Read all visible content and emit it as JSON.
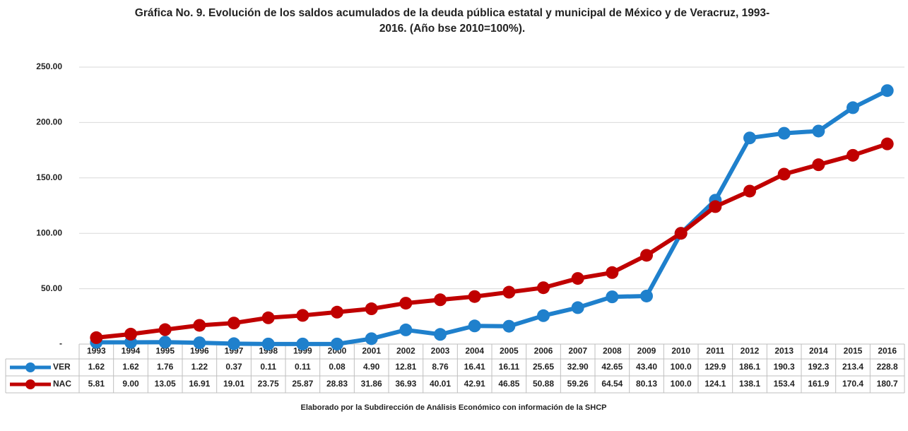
{
  "chart_data": {
    "type": "line",
    "title": "Gráfica No. 9. Evolución de los saldos acumulados de la deuda pública estatal y municipal de México y de Veracruz,  1993-2016. (Año bse 2010=100%).",
    "categories": [
      "1993",
      "1994",
      "1995",
      "1996",
      "1997",
      "1998",
      "1999",
      "2000",
      "2001",
      "2002",
      "2003",
      "2004",
      "2005",
      "2006",
      "2007",
      "2008",
      "2009",
      "2010",
      "2011",
      "2012",
      "2013",
      "2014",
      "2015",
      "2016"
    ],
    "series": [
      {
        "name": "VER",
        "color": "#1f80cc",
        "values": [
          1.62,
          1.62,
          1.76,
          1.22,
          0.37,
          0.11,
          0.11,
          0.08,
          4.9,
          12.81,
          8.76,
          16.41,
          16.11,
          25.65,
          32.9,
          42.65,
          43.4,
          100,
          129.9,
          186.1,
          190.3,
          192.3,
          213.4,
          228.8
        ],
        "value_labels": [
          "1.62",
          "1.62",
          "1.76",
          "1.22",
          "0.37",
          "0.11",
          "0.11",
          "0.08",
          "4.90",
          "12.81",
          "8.76",
          "16.41",
          "16.11",
          "25.65",
          "32.90",
          "42.65",
          "43.40",
          "100.0",
          "129.9",
          "186.1",
          "190.3",
          "192.3",
          "213.4",
          "228.8"
        ]
      },
      {
        "name": "NAC",
        "color": "#c00000",
        "values": [
          5.81,
          9,
          13.05,
          16.91,
          19.01,
          23.75,
          25.87,
          28.83,
          31.86,
          36.93,
          40.01,
          42.91,
          46.85,
          50.88,
          59.26,
          64.54,
          80.13,
          100,
          124.1,
          138.1,
          153.4,
          161.9,
          170.4,
          180.7
        ],
        "value_labels": [
          "5.81",
          "9.00",
          "13.05",
          "16.91",
          "19.01",
          "23.75",
          "25.87",
          "28.83",
          "31.86",
          "36.93",
          "40.01",
          "42.91",
          "46.85",
          "50.88",
          "59.26",
          "64.54",
          "80.13",
          "100.0",
          "124.1",
          "138.1",
          "153.4",
          "161.9",
          "170.4",
          "180.7"
        ]
      }
    ],
    "ylim": [
      0,
      250
    ],
    "yticks": [
      {
        "value": 0,
        "label": "-"
      },
      {
        "value": 50,
        "label": "50.00"
      },
      {
        "value": 100,
        "label": "100.00"
      },
      {
        "value": 150,
        "label": "150.00"
      },
      {
        "value": 200,
        "label": "200.00"
      },
      {
        "value": 250,
        "label": "250.00"
      }
    ],
    "grid": true,
    "source": "Elaborado por la Subdirección de Análisis Económico con información de la SHCP"
  }
}
